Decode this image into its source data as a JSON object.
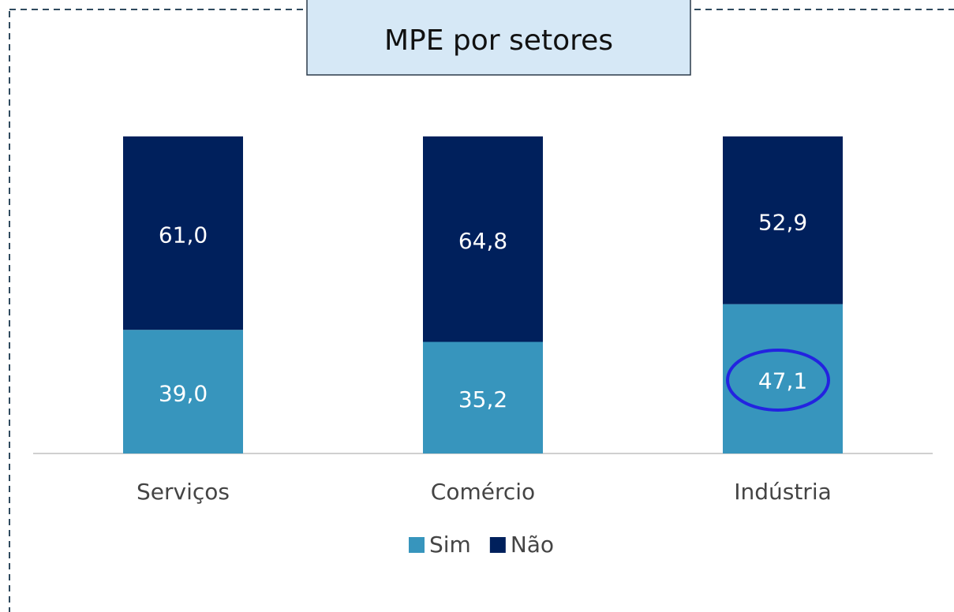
{
  "chart_data": {
    "type": "stacked_bar",
    "title": "MPE por setores",
    "categories": [
      "Serviços",
      "Comércio",
      "Indústria"
    ],
    "series": [
      {
        "name": "Sim",
        "color": "#3795bd",
        "values": [
          39.0,
          35.2,
          47.1
        ],
        "value_labels": [
          "39,0",
          "35,2",
          "47,1"
        ]
      },
      {
        "name": "Não",
        "color": "#00205c",
        "values": [
          61.0,
          64.8,
          52.9
        ],
        "value_labels": [
          "61,0",
          "64,8",
          "52,9"
        ]
      }
    ],
    "ylim": [
      0,
      100
    ],
    "legend": "bottom"
  }
}
